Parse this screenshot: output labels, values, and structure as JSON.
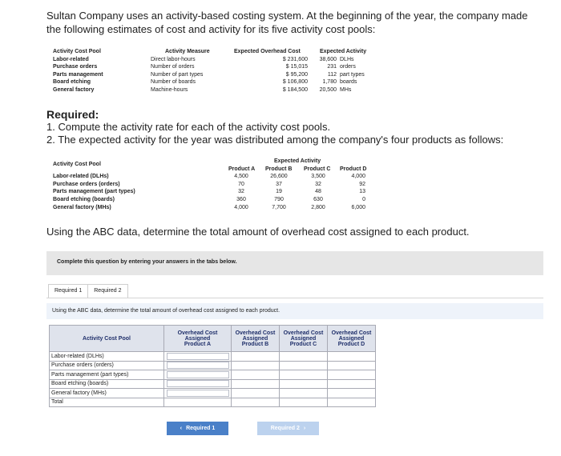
{
  "intro": "Sultan Company uses an activity-based costing system. At the beginning of the year, the company made the following estimates of cost and activity for its five activity cost pools:",
  "estimates": {
    "headers": [
      "Activity Cost Pool",
      "Activity Measure",
      "Expected Overhead Cost",
      "Expected Activity"
    ],
    "rows": [
      {
        "pool": "Labor-related",
        "measure": "Direct labor-hours",
        "cost": "$ 231,600",
        "activity": "38,600",
        "unit": "DLHs"
      },
      {
        "pool": "Purchase orders",
        "measure": "Number of orders",
        "cost": "$ 15,015",
        "activity": "231",
        "unit": "orders"
      },
      {
        "pool": "Parts management",
        "measure": "Number of part types",
        "cost": "$ 95,200",
        "activity": "112",
        "unit": "part types"
      },
      {
        "pool": "Board etching",
        "measure": "Number of boards",
        "cost": "$ 106,800",
        "activity": "1,780",
        "unit": "boards"
      },
      {
        "pool": "General factory",
        "measure": "Machine-hours",
        "cost": "$ 184,500",
        "activity": "20,500",
        "unit": "MHs"
      }
    ]
  },
  "required": {
    "heading": "Required:",
    "item1": "1. Compute the activity rate for each of the activity cost pools.",
    "item2": "2. The expected activity for the year was distributed among the company's four products as follows:"
  },
  "distribution": {
    "pool_header": "Activity Cost Pool",
    "group_header": "Expected Activity",
    "products": [
      "Product A",
      "Product B",
      "Product C",
      "Product D"
    ],
    "rows": [
      {
        "pool": "Labor-related (DLHs)",
        "values": [
          "4,500",
          "26,600",
          "3,500",
          "4,000"
        ]
      },
      {
        "pool": "Purchase orders (orders)",
        "values": [
          "70",
          "37",
          "32",
          "92"
        ]
      },
      {
        "pool": "Parts management (part types)",
        "values": [
          "32",
          "19",
          "48",
          "13"
        ]
      },
      {
        "pool": "Board etching (boards)",
        "values": [
          "360",
          "790",
          "630",
          "0"
        ]
      },
      {
        "pool": "General factory (MHs)",
        "values": [
          "4,000",
          "7,700",
          "2,800",
          "6,000"
        ]
      }
    ]
  },
  "abc_question": "Using the ABC data, determine the total amount of overhead cost assigned to each product.",
  "banner": "Complete this question by entering your answers in the tabs below.",
  "tabs": [
    "Required 1",
    "Required 2"
  ],
  "panel_question": "Using the ABC data, determine the total amount of overhead cost assigned to each product.",
  "answer_table": {
    "pool_header": "Activity Cost Pool",
    "col_line1": "Overhead Cost",
    "col_line2": "Assigned",
    "col_products": [
      "Product A",
      "Product B",
      "Product C",
      "Product D"
    ],
    "rows": [
      "Labor-related (DLHs)",
      "Purchase orders (orders)",
      "Parts management (part types)",
      "Board etching (boards)",
      "General factory (MHs)",
      "Total"
    ]
  },
  "nav": {
    "prev_label": "Required 1",
    "next_label": "Required 2",
    "prev_icon": "chevron-left-icon",
    "next_icon": "chevron-right-icon"
  }
}
